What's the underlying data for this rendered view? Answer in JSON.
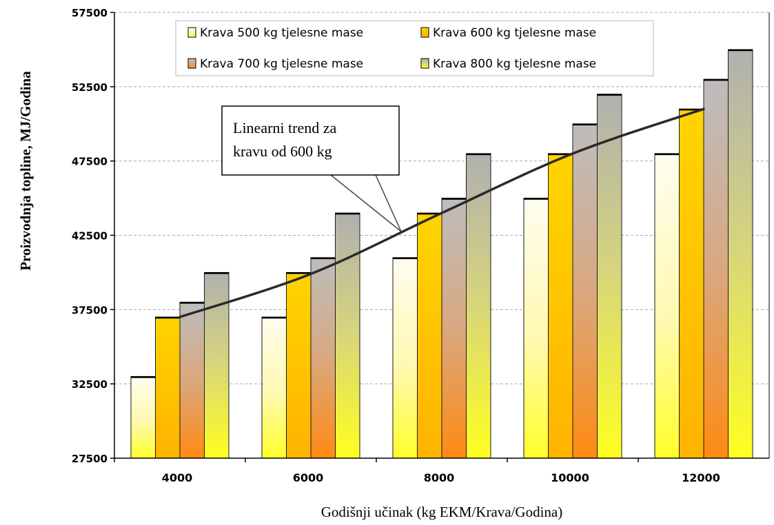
{
  "chart_data": {
    "type": "bar",
    "xlabel": "Godišnji učinak (kg EKM/Krava/Godina)",
    "ylabel": "Proizvodnja topline, MJ/Godina",
    "ylim": [
      27500,
      57500
    ],
    "yticks": [
      "27500",
      "32500",
      "37500",
      "42500",
      "47500",
      "52500",
      "57500"
    ],
    "categories": [
      "4000",
      "6000",
      "8000",
      "10000",
      "12000"
    ],
    "series": [
      {
        "name": "Krava 500 kg tjelesne mase",
        "values": [
          33000,
          37000,
          41000,
          45000,
          48000
        ]
      },
      {
        "name": "Krava 600 kg tjelesne mase",
        "values": [
          37000,
          40000,
          44000,
          48000,
          51000
        ]
      },
      {
        "name": "Krava 700 kg tjelesne mase",
        "values": [
          38000,
          41000,
          45000,
          50000,
          53000
        ]
      },
      {
        "name": "Krava 800 kg tjelesne mase",
        "values": [
          40000,
          44000,
          48000,
          52000,
          55000
        ]
      }
    ],
    "trendline": {
      "series": "Krava 600 kg tjelesne mase",
      "values": [
        37000,
        39900,
        44000,
        48000,
        51000
      ]
    },
    "annotation": {
      "line1": "Linearni trend za",
      "line2": "kravu od 600 kg"
    },
    "grid": "horizontal dashed",
    "legend_placement": "top-left, inside plot"
  },
  "colors": {
    "s500": [
      "#fffde6",
      "#ffff33"
    ],
    "s600": [
      "#ffd300",
      "#ffb800"
    ],
    "s700": [
      "#b8b8b8",
      "#ff8c1a"
    ],
    "s800": [
      "#b5b5b5",
      "#ffff33"
    ],
    "trend": "#2a2a2a",
    "grid": "#a6a6a6"
  }
}
